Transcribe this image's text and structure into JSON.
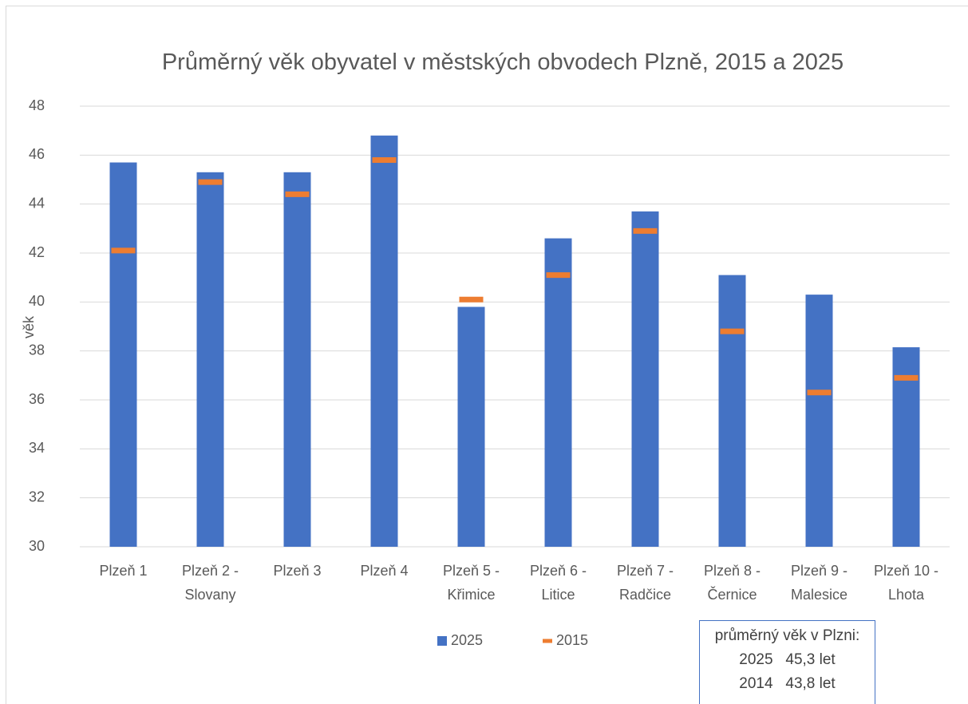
{
  "chart_data": {
    "type": "bar",
    "title": "Průměrný věk obyvatel v městských obvodech Plzně, 2015 a 2025",
    "y_label": "věk",
    "categories": [
      [
        "Plzeň 1"
      ],
      [
        "Plzeň 2 -",
        "Slovany"
      ],
      [
        "Plzeň 3"
      ],
      [
        "Plzeň 4"
      ],
      [
        "Plzeň 5 -",
        "Křimice"
      ],
      [
        "Plzeň 6 -",
        "Litice"
      ],
      [
        "Plzeň 7 -",
        "Radčice"
      ],
      [
        "Plzeň 8 -",
        "Černice"
      ],
      [
        "Plzeň 9 -",
        "Malesice"
      ],
      [
        "Plzeň 10 -",
        "Lhota"
      ]
    ],
    "series": [
      {
        "name": "2025",
        "color": "#4472c4",
        "mark": "bar",
        "values": [
          45.7,
          45.3,
          45.3,
          46.8,
          39.8,
          42.6,
          43.7,
          41.1,
          40.3,
          38.15
        ]
      },
      {
        "name": "2015",
        "color": "#ed7d31",
        "mark": "dash",
        "values": [
          42.1,
          44.9,
          44.4,
          45.8,
          40.1,
          41.1,
          42.9,
          38.8,
          36.3,
          36.9
        ]
      }
    ],
    "ylim": [
      30,
      48
    ],
    "yticks": [
      30,
      32,
      34,
      36,
      38,
      40,
      42,
      44,
      46,
      48
    ],
    "grid": true,
    "legend": "bottom",
    "annotation": {
      "title": "průměrný věk v Plzni:",
      "rows": [
        [
          "2025",
          "45,3 let"
        ],
        [
          "2014",
          "43,8 let"
        ]
      ]
    }
  }
}
